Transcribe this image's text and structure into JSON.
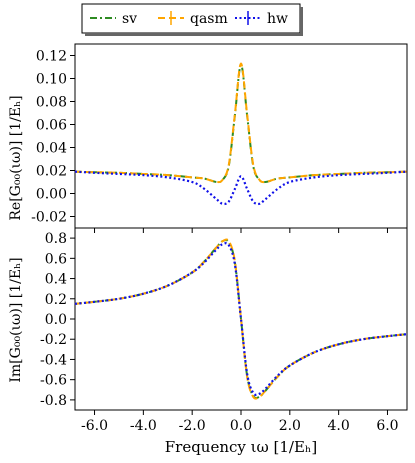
{
  "legend": {
    "items": [
      {
        "label": "sv",
        "color": "#2e8b22",
        "style": "dash-dot"
      },
      {
        "label": "qasm",
        "color": "#ffa500",
        "style": "dashed"
      },
      {
        "label": "hw",
        "color": "#1010e8",
        "style": "dotted"
      }
    ]
  },
  "axes": {
    "top_ylabel": "Re[G₀₀(ιω)] [1/Eₕ]",
    "bottom_ylabel": "Im[G₀₀(ιω)] [1/Eₕ]",
    "xlabel": "Frequency ιω [1/Eₕ]"
  },
  "chart_data": [
    {
      "type": "line",
      "title": "",
      "xlabel": "",
      "ylabel": "Re[G₀₀(ιω)] [1/Eₕ]",
      "xlim": [
        -6.8,
        6.8
      ],
      "ylim": [
        -0.03,
        0.13
      ],
      "yticks": [
        -0.02,
        0.0,
        0.02,
        0.04,
        0.06,
        0.08,
        0.1,
        0.12
      ],
      "ytick_labels": [
        "-0.02",
        "0.00",
        "0.02",
        "0.04",
        "0.06",
        "0.08",
        "0.10",
        "0.12"
      ],
      "grid": false,
      "legend": "top (outside)",
      "series": [
        {
          "name": "sv",
          "x": [
            -6.8,
            -6,
            -5,
            -4,
            -3,
            -2,
            -1.5,
            -1,
            -0.75,
            -0.5,
            -0.25,
            0,
            0.25,
            0.5,
            0.75,
            1,
            1.5,
            2,
            3,
            4,
            5,
            6,
            6.8
          ],
          "values": [
            0.019,
            0.0185,
            0.018,
            0.017,
            0.016,
            0.014,
            0.013,
            0.01,
            0.012,
            0.024,
            0.068,
            0.112,
            0.068,
            0.024,
            0.012,
            0.01,
            0.013,
            0.014,
            0.016,
            0.017,
            0.018,
            0.0185,
            0.019
          ]
        },
        {
          "name": "qasm",
          "x": [
            -6.8,
            -6,
            -5,
            -4,
            -3,
            -2,
            -1.5,
            -1,
            -0.75,
            -0.5,
            -0.25,
            0,
            0.25,
            0.5,
            0.75,
            1,
            1.5,
            2,
            3,
            4,
            5,
            6,
            6.8
          ],
          "values": [
            0.019,
            0.0185,
            0.018,
            0.017,
            0.016,
            0.014,
            0.013,
            0.01,
            0.012,
            0.025,
            0.069,
            0.113,
            0.069,
            0.025,
            0.012,
            0.01,
            0.013,
            0.014,
            0.016,
            0.017,
            0.018,
            0.0185,
            0.019
          ]
        },
        {
          "name": "hw",
          "x": [
            -6.8,
            -6,
            -5,
            -4,
            -3,
            -2,
            -1.5,
            -1,
            -0.75,
            -0.5,
            -0.25,
            0,
            0.25,
            0.5,
            0.75,
            1,
            1.5,
            2,
            3,
            4,
            5,
            6,
            6.8
          ],
          "values": [
            0.019,
            0.018,
            0.017,
            0.016,
            0.014,
            0.01,
            0.004,
            -0.005,
            -0.009,
            -0.007,
            0.004,
            0.015,
            0.004,
            -0.007,
            -0.009,
            -0.005,
            0.004,
            0.01,
            0.014,
            0.016,
            0.017,
            0.018,
            0.019
          ]
        }
      ]
    },
    {
      "type": "line",
      "title": "",
      "xlabel": "Frequency ιω [1/Eₕ]",
      "ylabel": "Im[G₀₀(ιω)] [1/Eₕ]",
      "xlim": [
        -6.8,
        6.8
      ],
      "ylim": [
        -0.9,
        0.9
      ],
      "xticks": [
        -6,
        -4,
        -2,
        0,
        2,
        4,
        6
      ],
      "xtick_labels": [
        "-6.0",
        "-4.0",
        "-2.0",
        "0.0",
        "2.0",
        "4.0",
        "6.0"
      ],
      "yticks": [
        -0.8,
        -0.6,
        -0.4,
        -0.2,
        0.0,
        0.2,
        0.4,
        0.6,
        0.8
      ],
      "ytick_labels": [
        "-0.8",
        "-0.6",
        "-0.4",
        "-0.2",
        "0.0",
        "0.2",
        "0.4",
        "0.6",
        "0.8"
      ],
      "grid": false,
      "series": [
        {
          "name": "sv",
          "x": [
            -6.8,
            -6,
            -5,
            -4,
            -3,
            -2,
            -1.5,
            -1,
            -0.75,
            -0.5,
            -0.25,
            0,
            0.25,
            0.5,
            0.75,
            1,
            1.5,
            2,
            3,
            4,
            5,
            6,
            6.8
          ],
          "values": [
            0.15,
            0.17,
            0.2,
            0.25,
            0.33,
            0.46,
            0.57,
            0.71,
            0.77,
            0.76,
            0.56,
            0.0,
            -0.56,
            -0.76,
            -0.77,
            -0.71,
            -0.57,
            -0.46,
            -0.33,
            -0.25,
            -0.2,
            -0.17,
            -0.15
          ]
        },
        {
          "name": "qasm",
          "x": [
            -6.8,
            -6,
            -5,
            -4,
            -3,
            -2,
            -1.5,
            -1,
            -0.75,
            -0.5,
            -0.25,
            0,
            0.25,
            0.5,
            0.75,
            1,
            1.5,
            2,
            3,
            4,
            5,
            6,
            6.8
          ],
          "values": [
            0.15,
            0.17,
            0.2,
            0.25,
            0.33,
            0.46,
            0.57,
            0.71,
            0.77,
            0.77,
            0.57,
            0.0,
            -0.57,
            -0.77,
            -0.77,
            -0.71,
            -0.57,
            -0.46,
            -0.33,
            -0.25,
            -0.2,
            -0.17,
            -0.15
          ]
        },
        {
          "name": "hw",
          "x": [
            -6.8,
            -6,
            -5,
            -4,
            -3,
            -2,
            -1.5,
            -1,
            -0.75,
            -0.5,
            -0.25,
            0,
            0.25,
            0.5,
            0.75,
            1,
            1.5,
            2,
            3,
            4,
            5,
            6,
            6.8
          ],
          "values": [
            0.15,
            0.17,
            0.2,
            0.25,
            0.33,
            0.46,
            0.56,
            0.69,
            0.74,
            0.73,
            0.54,
            0.0,
            -0.54,
            -0.73,
            -0.74,
            -0.69,
            -0.56,
            -0.46,
            -0.33,
            -0.25,
            -0.2,
            -0.17,
            -0.15
          ]
        }
      ]
    }
  ]
}
